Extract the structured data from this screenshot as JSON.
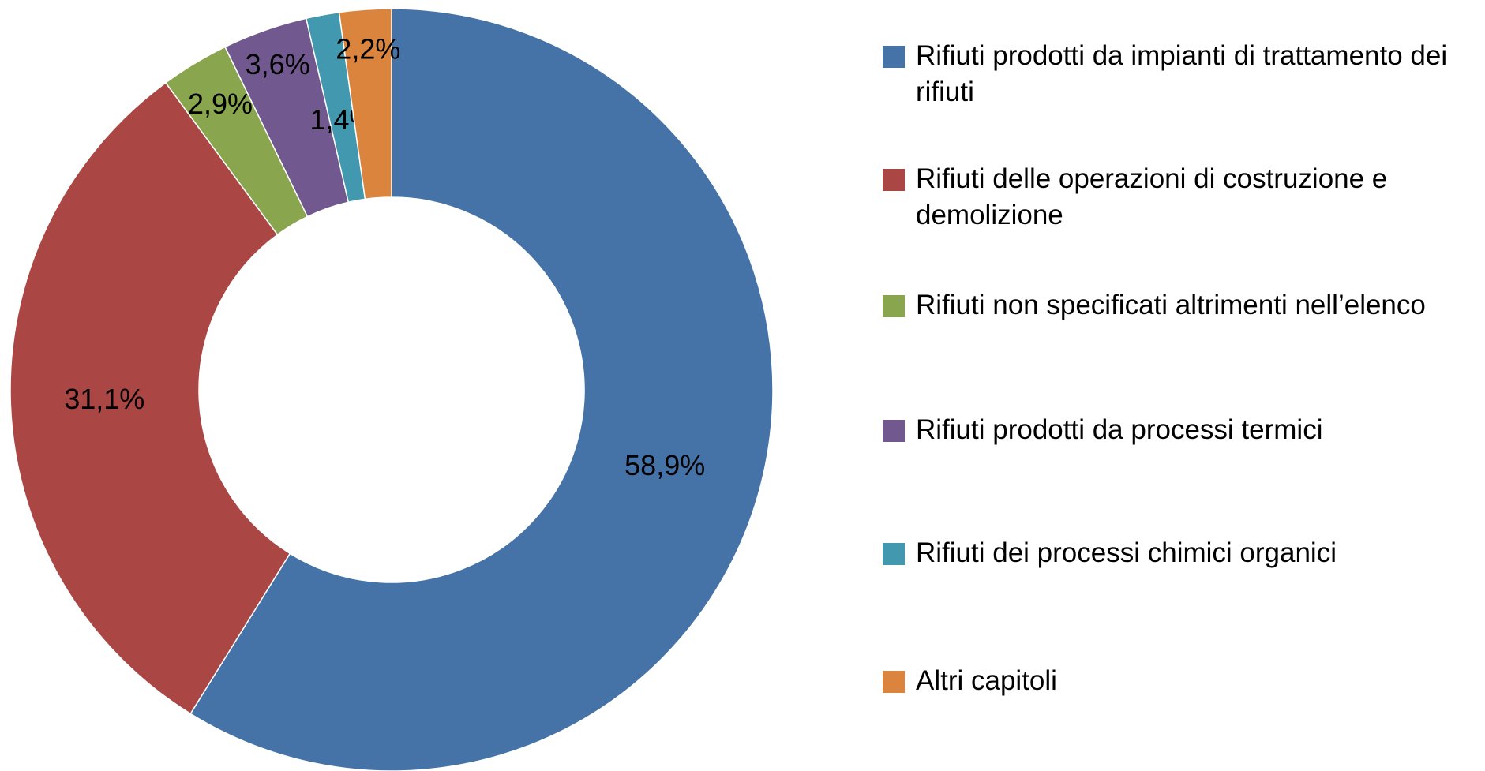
{
  "chart_data": {
    "type": "pie",
    "categories": [
      "Rifiuti prodotti da impianti di trattamento dei rifiuti",
      "Rifiuti delle operazioni di costruzione e demolizione",
      "Rifiuti non specificati altrimenti nell’elenco",
      "Rifiuti prodotti da processi termici",
      "Rifiuti dei processi chimici organici",
      "Altri capitoli"
    ],
    "values": [
      58.9,
      31.1,
      2.9,
      3.6,
      1.4,
      2.2
    ],
    "value_labels": [
      "58,9%",
      "31,1%",
      "2,9%",
      "3,6%",
      "1,4%",
      "2,2%"
    ],
    "colors": [
      "#4572a7",
      "#aa4643",
      "#89a54e",
      "#71588f",
      "#4198af",
      "#db843d"
    ],
    "donut": true,
    "legend": "right"
  }
}
